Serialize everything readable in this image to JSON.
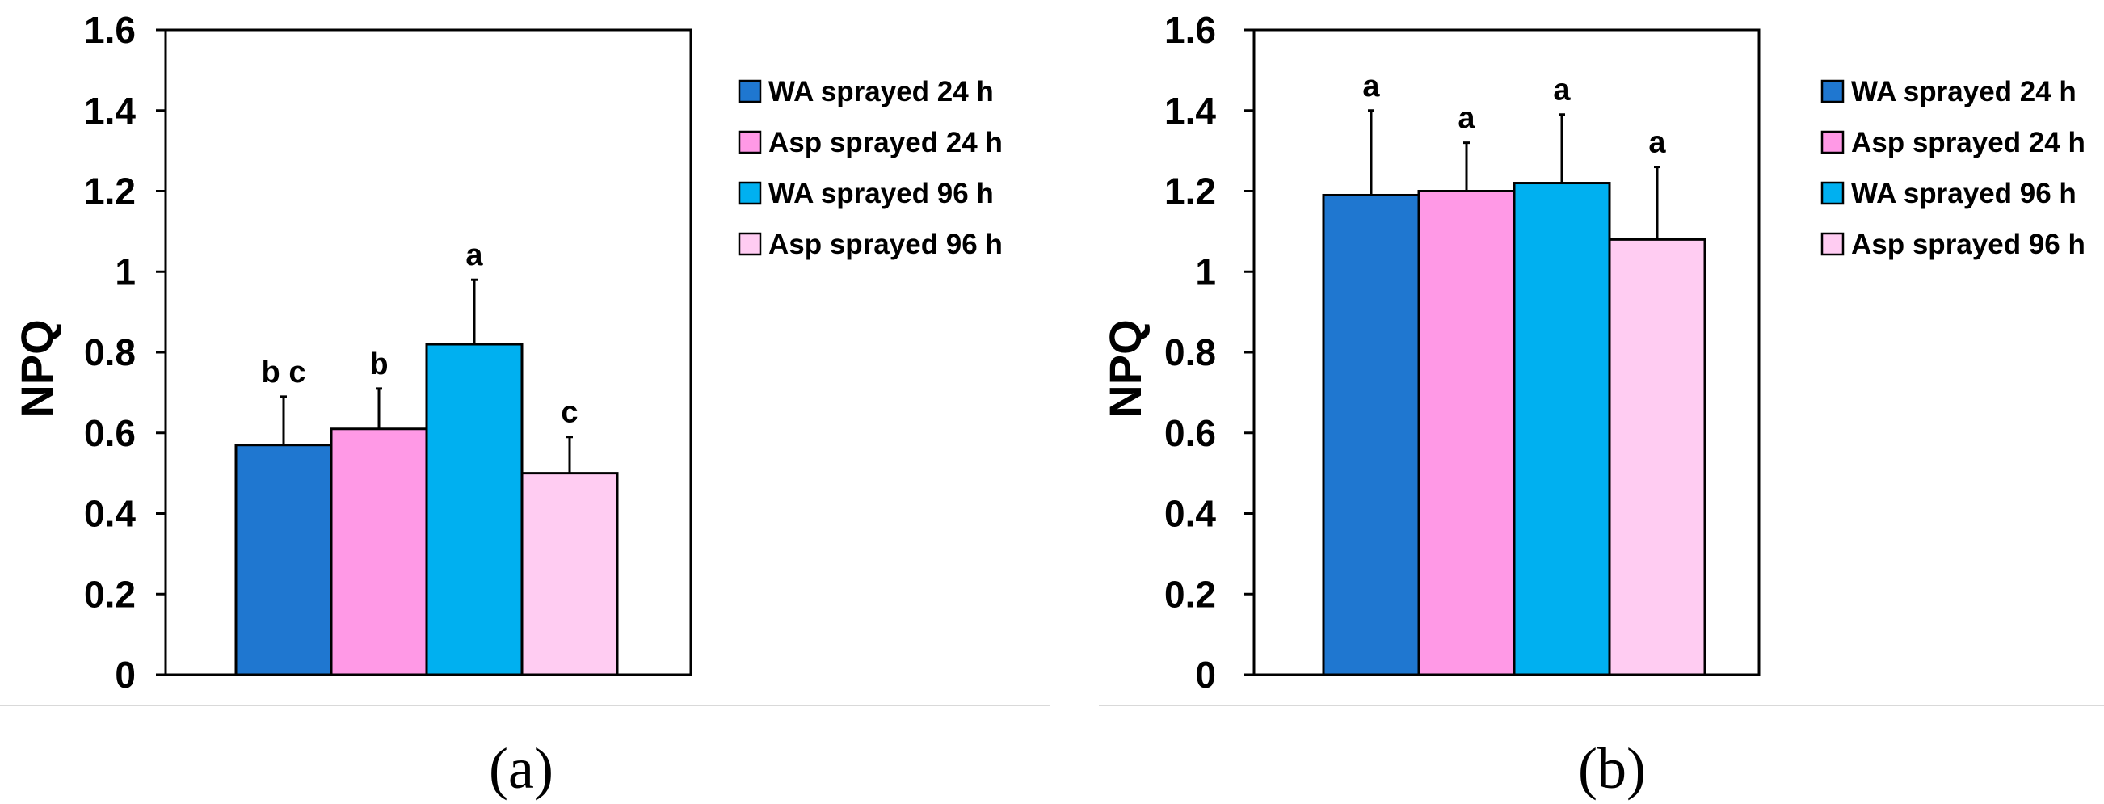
{
  "chart_data": [
    {
      "type": "bar",
      "panel_label": "(a)",
      "ylabel": "NPQ",
      "ylim": [
        0,
        1.6
      ],
      "yticks": [
        "0",
        "0.2",
        "0.4",
        "0.6",
        "0.8",
        "1",
        "1.2",
        "1.4",
        "1.6"
      ],
      "legend_position": "right",
      "series": [
        {
          "name": "WA sprayed 24 h",
          "color": "#1F77D0",
          "value": 0.57,
          "error": 0.12,
          "letter": "b c"
        },
        {
          "name": "Asp sprayed 24 h",
          "color": "#FF99E6",
          "value": 0.61,
          "error": 0.1,
          "letter": "b"
        },
        {
          "name": "WA sprayed 96 h",
          "color": "#00B0F0",
          "value": 0.82,
          "error": 0.16,
          "letter": "a"
        },
        {
          "name": "Asp sprayed 96 h",
          "color": "#FFCCF2",
          "value": 0.5,
          "error": 0.09,
          "letter": "c"
        }
      ]
    },
    {
      "type": "bar",
      "panel_label": "(b)",
      "ylabel": "NPQ",
      "ylim": [
        0,
        1.6
      ],
      "yticks": [
        "0",
        "0.2",
        "0.4",
        "0.6",
        "0.8",
        "1",
        "1.2",
        "1.4",
        "1.6"
      ],
      "legend_position": "right",
      "series": [
        {
          "name": "WA sprayed 24 h",
          "color": "#1F77D0",
          "value": 1.19,
          "error": 0.21,
          "letter": "a"
        },
        {
          "name": "Asp sprayed 24 h",
          "color": "#FF99E6",
          "value": 1.2,
          "error": 0.12,
          "letter": "a"
        },
        {
          "name": "WA sprayed 96 h",
          "color": "#00B0F0",
          "value": 1.22,
          "error": 0.17,
          "letter": "a"
        },
        {
          "name": "Asp sprayed 96 h",
          "color": "#FFCCF2",
          "value": 1.08,
          "error": 0.18,
          "letter": "a"
        }
      ]
    }
  ]
}
